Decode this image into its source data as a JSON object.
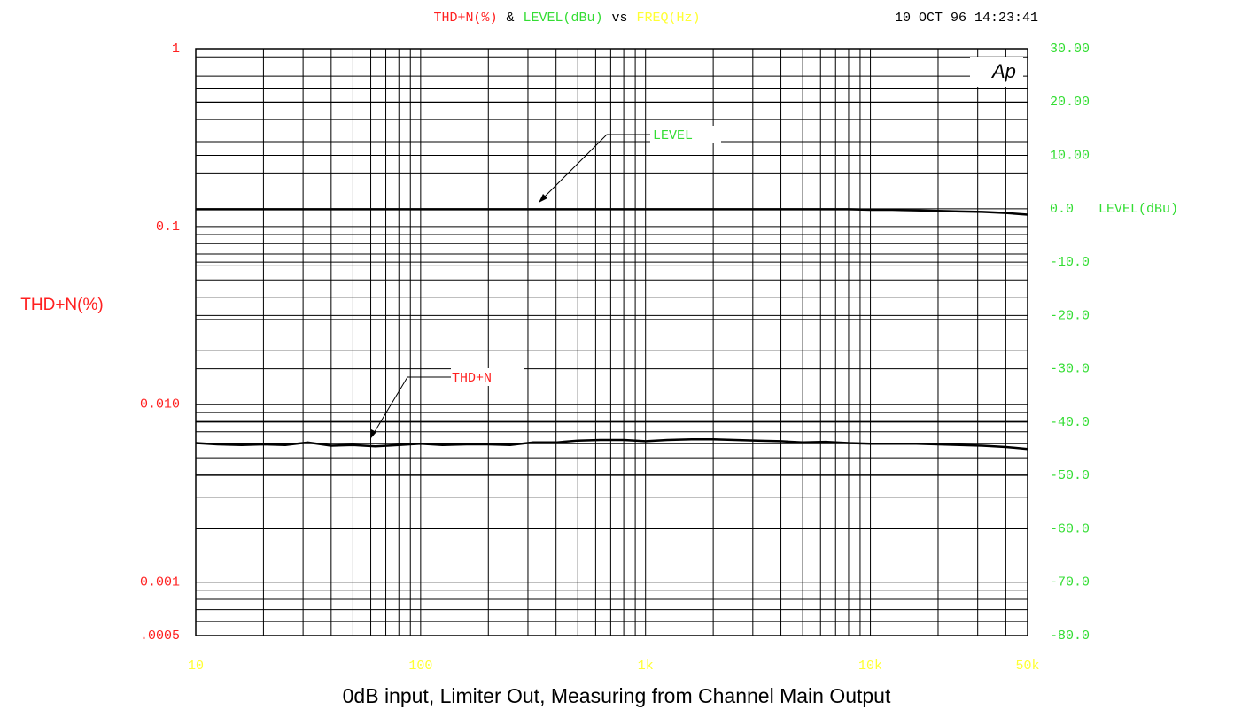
{
  "chart_data": {
    "type": "line",
    "title_parts": [
      {
        "text": "THD+N(%)",
        "color": "#ff2020"
      },
      {
        "text": "&",
        "color": "#000000"
      },
      {
        "text": "LEVEL(dBu)",
        "color": "#33dd33"
      },
      {
        "text": "vs",
        "color": "#000000"
      },
      {
        "text": "FREQ(Hz)",
        "color": "#ffff33"
      }
    ],
    "timestamp": "10 OCT 96 14:23:41",
    "ylabel": "THD+N(%)",
    "y2label": "LEVEL(dBu)",
    "caption": "0dB input, Limiter Out, Measuring from Channel Main Output",
    "logo": "Ap",
    "annotations": [
      "LEVEL",
      "THD+N"
    ],
    "xscale": "log",
    "yscale": "log",
    "grid": true,
    "xlim": [
      10,
      50000
    ],
    "xticks": [
      10,
      100,
      {
        "value": 1000,
        "label": "1k"
      },
      {
        "value": 10000,
        "label": "10k"
      },
      {
        "value": 50000,
        "label": "50k"
      }
    ],
    "xminorticks": [
      20,
      30,
      40,
      50,
      60,
      70,
      80,
      90,
      200,
      300,
      400,
      500,
      600,
      700,
      800,
      900,
      2000,
      3000,
      4000,
      5000,
      6000,
      7000,
      8000,
      9000,
      20000,
      30000,
      40000
    ],
    "xtick_color": "#ffff33",
    "ylim": [
      0.0005,
      1
    ],
    "yticks": [
      1,
      0.1,
      {
        "value": 0.01,
        "label": "0.010"
      },
      0.001,
      {
        "value": 0.0005,
        "label": ".0005"
      }
    ],
    "yminorticks": [
      0.9,
      0.8,
      0.7,
      0.6,
      0.5,
      0.4,
      0.3,
      0.2,
      0.09,
      0.08,
      0.07,
      0.06,
      0.05,
      0.04,
      0.03,
      0.02,
      0.009,
      0.008,
      0.007,
      0.006,
      0.005,
      0.004,
      0.003,
      0.002,
      0.0009,
      0.0008,
      0.0007,
      0.0006
    ],
    "ytick_color": "#ff2020",
    "y2lim": [
      -80,
      30
    ],
    "y2ticks": [
      {
        "value": 30,
        "label": "30.00"
      },
      {
        "value": 20,
        "label": "20.00"
      },
      {
        "value": 10,
        "label": "10.00"
      },
      {
        "value": 0,
        "label": "0.0"
      },
      {
        "value": -10,
        "label": "-10.0"
      },
      {
        "value": -20,
        "label": "-20.0"
      },
      {
        "value": -30,
        "label": "-30.0"
      },
      {
        "value": -40,
        "label": "-40.0"
      },
      {
        "value": -50,
        "label": "-50.0"
      },
      {
        "value": -60,
        "label": "-60.0"
      },
      {
        "value": -70,
        "label": "-70.0"
      },
      {
        "value": -80,
        "label": "-80.0"
      }
    ],
    "y2tick_color": "#33dd33",
    "x": [
      10,
      12.5,
      16,
      20,
      25,
      31.5,
      40,
      50,
      63,
      80,
      100,
      125,
      160,
      200,
      250,
      315,
      400,
      500,
      630,
      800,
      1000,
      1250,
      1600,
      2000,
      2500,
      3150,
      4000,
      5000,
      6300,
      8000,
      10000,
      12500,
      16000,
      20000,
      25000,
      31500,
      40000,
      50000
    ],
    "series": [
      {
        "name": "LEVEL",
        "color": "#000000",
        "axis": "y2",
        "values": [
          -0.1,
          -0.1,
          -0.1,
          -0.1,
          -0.1,
          -0.1,
          -0.1,
          -0.1,
          -0.1,
          -0.1,
          -0.1,
          -0.1,
          -0.1,
          -0.1,
          -0.1,
          -0.1,
          -0.1,
          -0.1,
          -0.1,
          -0.1,
          -0.1,
          -0.1,
          -0.1,
          -0.1,
          -0.1,
          -0.1,
          -0.1,
          -0.1,
          -0.1,
          -0.1,
          -0.2,
          -0.2,
          -0.3,
          -0.4,
          -0.5,
          -0.6,
          -0.8,
          -1.1
        ]
      },
      {
        "name": "THD+N",
        "color": "#000000",
        "values": [
          0.00605,
          0.00595,
          0.0059,
          0.00595,
          0.0059,
          0.0061,
          0.00585,
          0.0059,
          0.0058,
          0.0059,
          0.006,
          0.0059,
          0.00595,
          0.00595,
          0.0059,
          0.0061,
          0.0061,
          0.00625,
          0.0063,
          0.0063,
          0.0062,
          0.0063,
          0.00635,
          0.00635,
          0.0063,
          0.00625,
          0.0062,
          0.0061,
          0.00615,
          0.00605,
          0.006,
          0.006,
          0.006,
          0.00595,
          0.0059,
          0.00585,
          0.00575,
          0.0056
        ]
      }
    ]
  }
}
